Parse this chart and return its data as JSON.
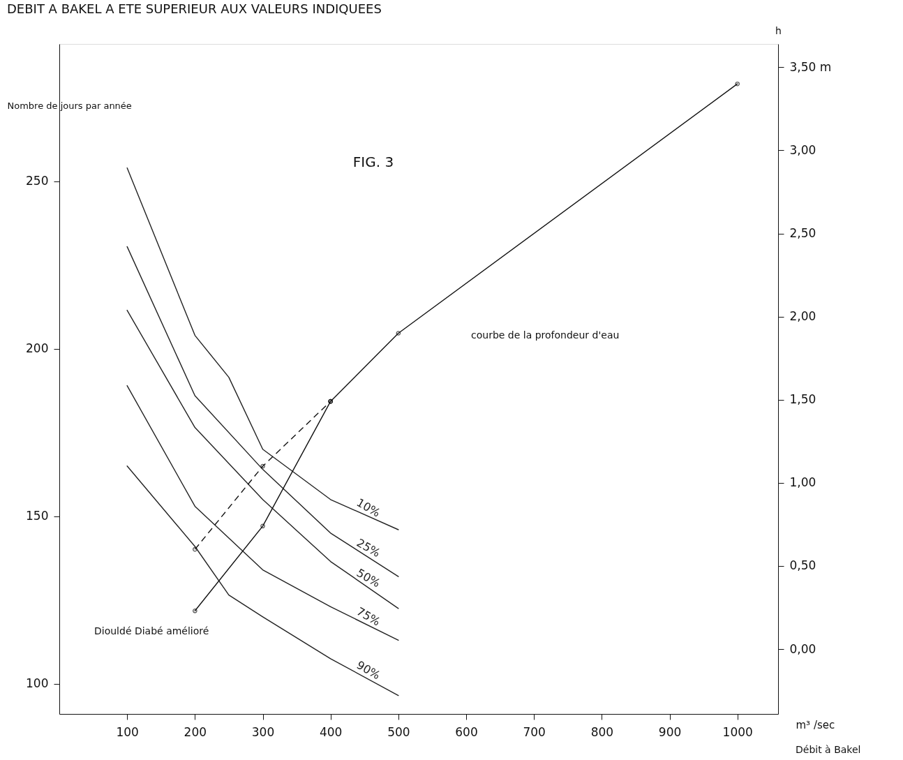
{
  "chart_data": {
    "type": "line",
    "title": "DEBIT A BAKEL A ETE SUPERIEUR AUX VALEURS INDIQUEES",
    "xlabel": "m³ /sec",
    "ylabel": "Nombre de jours par année",
    "y2label": "h",
    "annotations": [
      "FIG. 3",
      "courbe de la profondeur d'eau",
      "Diouldé Diabé amélioré",
      "Débit à Bakel"
    ],
    "xlim": [
      0,
      1060
    ],
    "xticks": [
      100,
      200,
      300,
      400,
      500,
      600,
      700,
      800,
      900,
      1000
    ],
    "ylim": [
      91,
      291
    ],
    "yticks": [
      100,
      150,
      200,
      250
    ],
    "y2lim": [
      -0.39,
      3.64
    ],
    "y2ticks": [
      {
        "value": 0,
        "label": "0,00"
      },
      {
        "value": 0.5,
        "label": "0,50"
      },
      {
        "value": 1,
        "label": "1,00"
      },
      {
        "value": 1.5,
        "label": "1,50"
      },
      {
        "value": 2,
        "label": "2,00"
      },
      {
        "value": 2.5,
        "label": "2,50"
      },
      {
        "value": 3,
        "label": "3,00"
      },
      {
        "value": 3.5,
        "label": "3,50 m"
      }
    ],
    "grid": false,
    "legend": false,
    "line_style": "solid",
    "marker": "none",
    "series": [
      {
        "name": "10%",
        "color": "#222222",
        "x": [
          100,
          200,
          250,
          300,
          400,
          500
        ],
        "values": [
          254,
          204,
          191.5,
          170,
          155,
          146
        ]
      },
      {
        "name": "25%",
        "color": "#222222",
        "x": [
          100,
          200,
          300,
          400,
          500
        ],
        "values": [
          230.5,
          186,
          164,
          145,
          132
        ]
      },
      {
        "name": "50%",
        "color": "#222222",
        "x": [
          100,
          200,
          300,
          400,
          500
        ],
        "values": [
          211.5,
          176.5,
          155,
          136.5,
          122.5
        ]
      },
      {
        "name": "75%",
        "color": "#222222",
        "x": [
          100,
          200,
          300,
          400,
          500
        ],
        "values": [
          189,
          153,
          134,
          123,
          113
        ]
      },
      {
        "name": "90%",
        "color": "#222222",
        "x": [
          100,
          200,
          250,
          300,
          400,
          500
        ],
        "values": [
          165,
          141,
          126.5,
          120,
          107.5,
          96.5
        ]
      },
      {
        "color": "#111111",
        "axis": "y2",
        "line_style": "dashed",
        "marker": "circle",
        "x": [
          200,
          300,
          400
        ],
        "values": [
          0.6,
          1.1,
          1.49
        ]
      },
      {
        "color": "#111111",
        "axis": "y2",
        "marker": "circle",
        "x": [
          400,
          500,
          1000
        ],
        "values": [
          1.49,
          1.9,
          3.4
        ]
      },
      {
        "color": "#111111",
        "axis": "y2",
        "marker": "circle",
        "x": [
          200,
          300,
          400
        ],
        "values": [
          0.23,
          0.74,
          1.49
        ]
      }
    ]
  }
}
